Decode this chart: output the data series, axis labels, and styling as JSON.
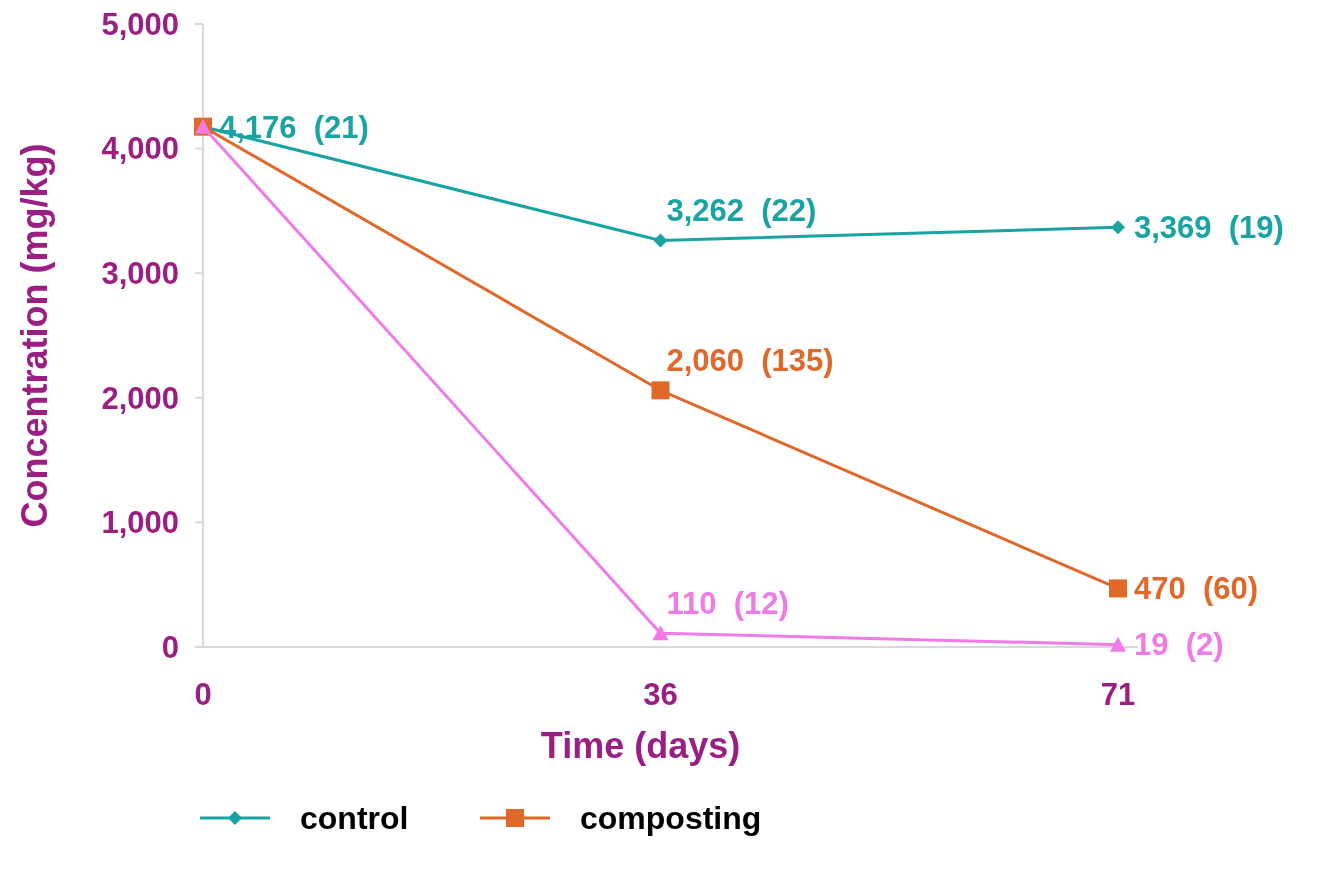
{
  "chart_data": {
    "type": "line",
    "xlabel": "Time (days)",
    "ylabel": "Concentration (mg/kg)",
    "categories": [
      "0",
      "36",
      "71"
    ],
    "ylim": [
      0,
      5000
    ],
    "yticks": [
      {
        "value": 0,
        "label": "0"
      },
      {
        "value": 1000,
        "label": "1,000"
      },
      {
        "value": 2000,
        "label": "2,000"
      },
      {
        "value": 3000,
        "label": "3,000"
      },
      {
        "value": 4000,
        "label": "4,000"
      },
      {
        "value": 5000,
        "label": "5,000"
      }
    ],
    "grid": false,
    "legend": "bottom",
    "series": [
      {
        "name": "control",
        "color": "#1aa3a3",
        "marker": "diamond",
        "values": [
          4176,
          3262,
          3369
        ],
        "value_labels": [
          "4,176  (21)",
          "3,262  (22)",
          "3,369  (19)"
        ]
      },
      {
        "name": "composting",
        "color": "#e0692a",
        "marker": "square",
        "values": [
          4176,
          2060,
          470
        ],
        "value_labels": [
          null,
          "2,060  (135)",
          "470  (60)"
        ]
      },
      {
        "color": "#f07ae6",
        "marker": "triangle",
        "values": [
          4176,
          110,
          19
        ],
        "value_labels": [
          null,
          "110  (12)",
          "19  (2)"
        ]
      }
    ]
  }
}
